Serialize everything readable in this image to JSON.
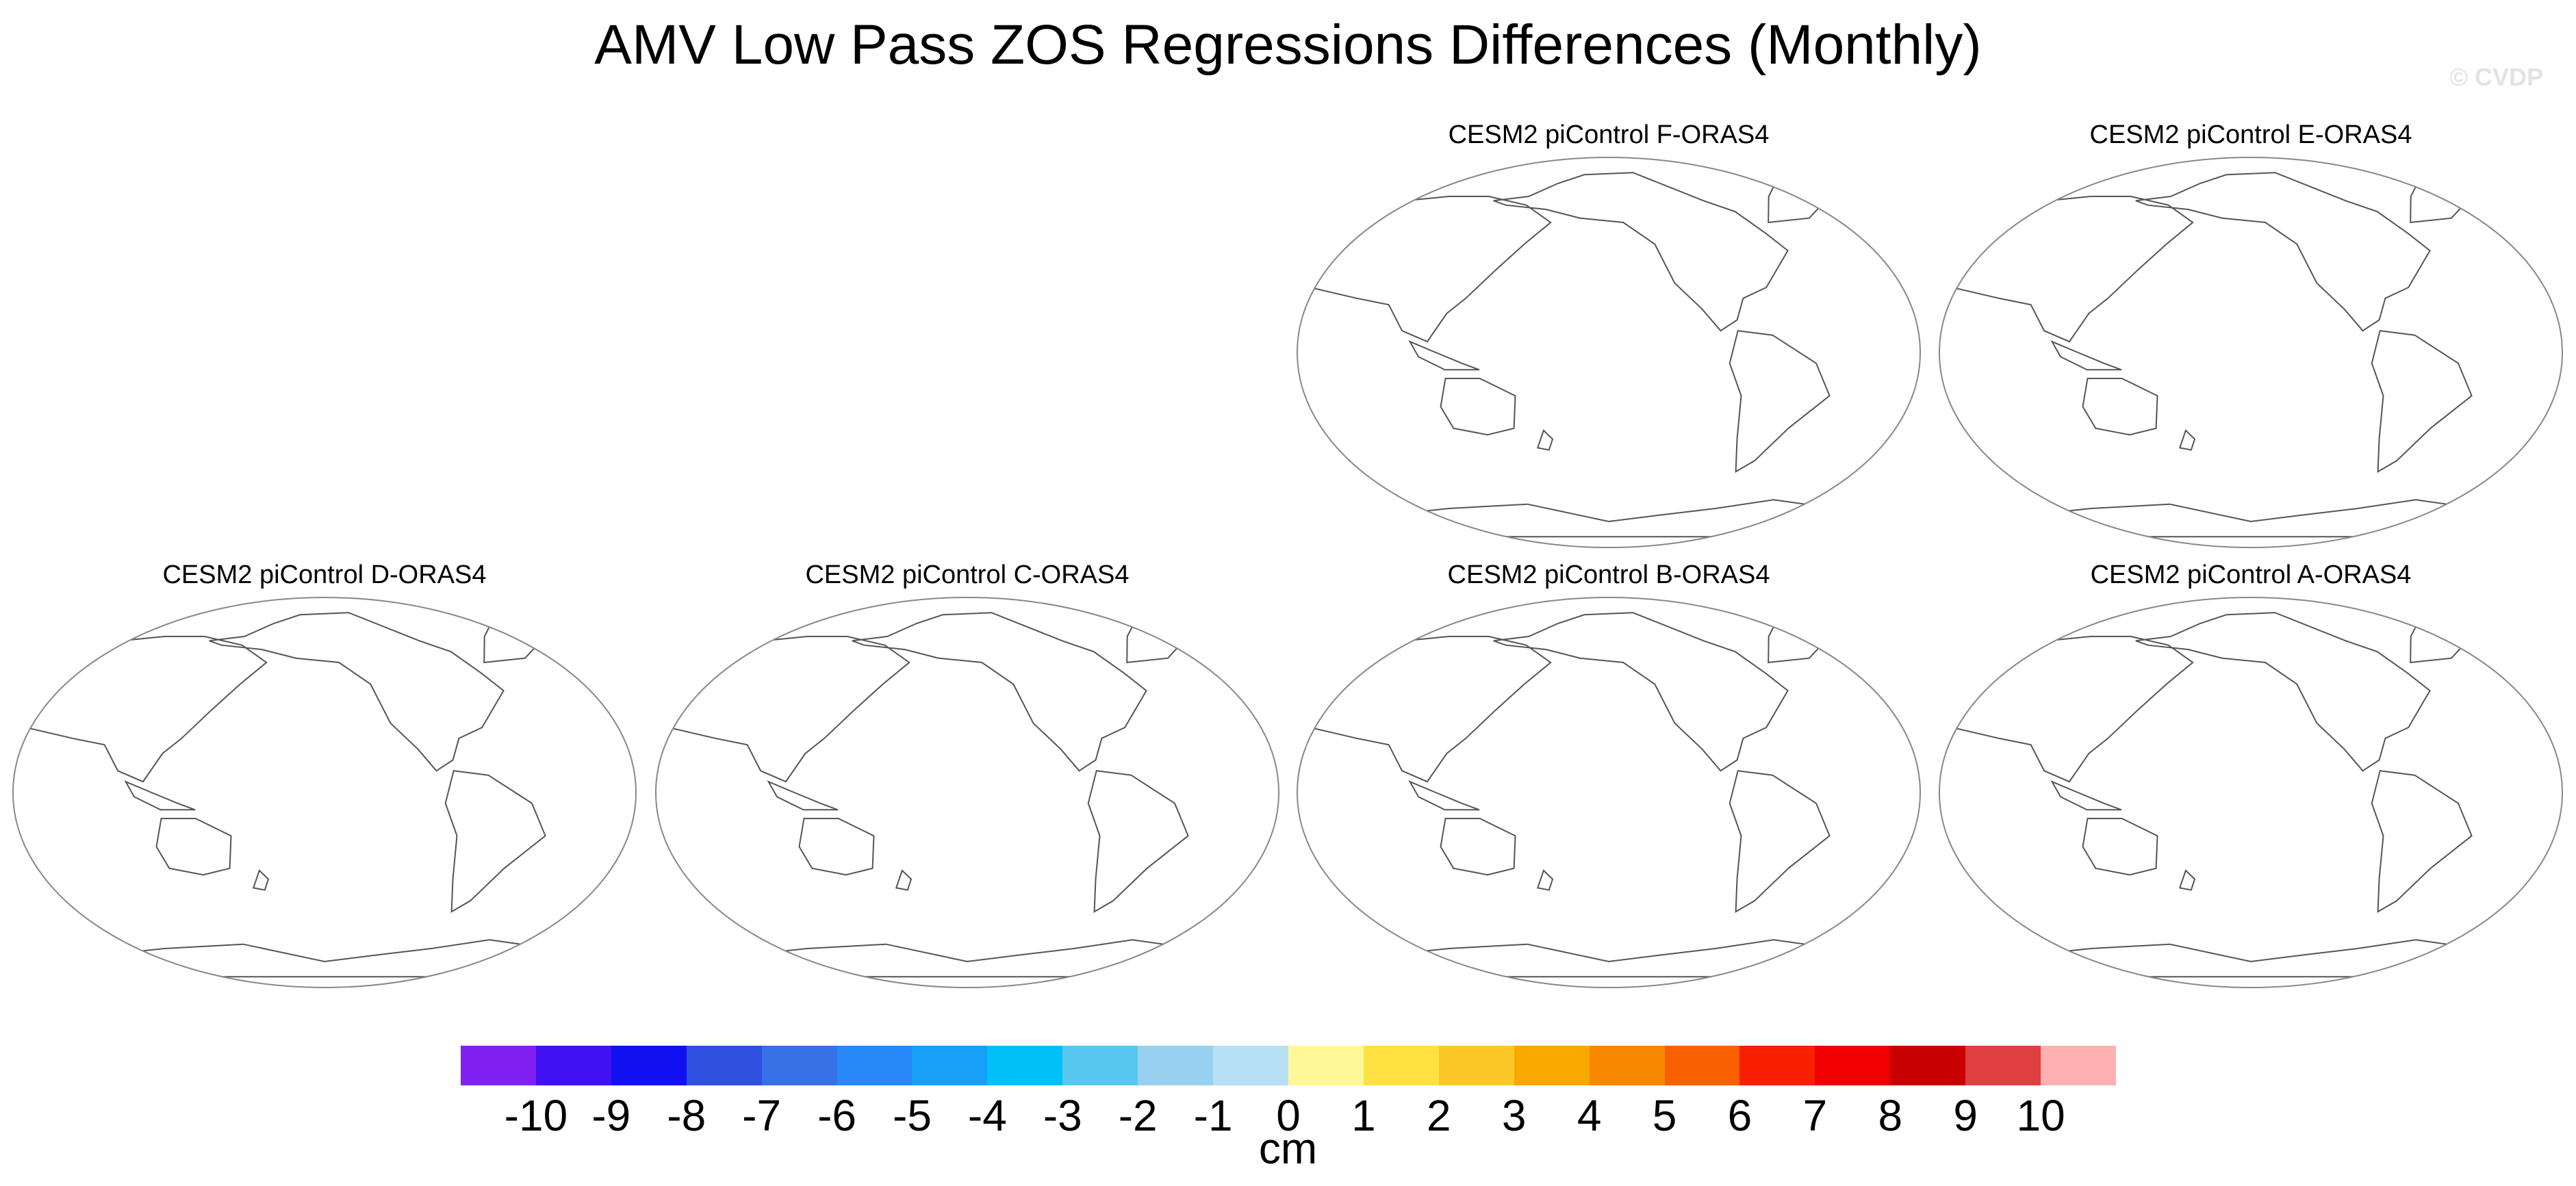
{
  "title": "AMV Low Pass ZOS Regressions Differences (Monthly)",
  "watermark": "© CVDP",
  "panels": [
    {
      "title": "CESM2 piControl F-ORAS4"
    },
    {
      "title": "CESM2 piControl E-ORAS4"
    },
    {
      "title": "CESM2 piControl D-ORAS4"
    },
    {
      "title": "CESM2 piControl C-ORAS4"
    },
    {
      "title": "CESM2 piControl B-ORAS4"
    },
    {
      "title": "CESM2 piControl A-ORAS4"
    }
  ],
  "colorbar": {
    "units": "cm",
    "tick_labels": [
      "-10",
      "-9",
      "-8",
      "-7",
      "-6",
      "-5",
      "-4",
      "-3",
      "-2",
      "-1",
      "0",
      "1",
      "2",
      "3",
      "4",
      "5",
      "6",
      "7",
      "8",
      "9",
      "10"
    ],
    "colors": [
      "#8020f0",
      "#4010f0",
      "#1010f0",
      "#3050e0",
      "#3870e8",
      "#2888f8",
      "#18a0f8",
      "#00c0f8",
      "#58c8f0",
      "#98d0f0",
      "#b8e0f4",
      "#fff898",
      "#fee040",
      "#fcc828",
      "#f8a800",
      "#f88800",
      "#f86000",
      "#f82000",
      "#f00000",
      "#c80000",
      "#e04040",
      "#ffb0b0"
    ]
  }
}
